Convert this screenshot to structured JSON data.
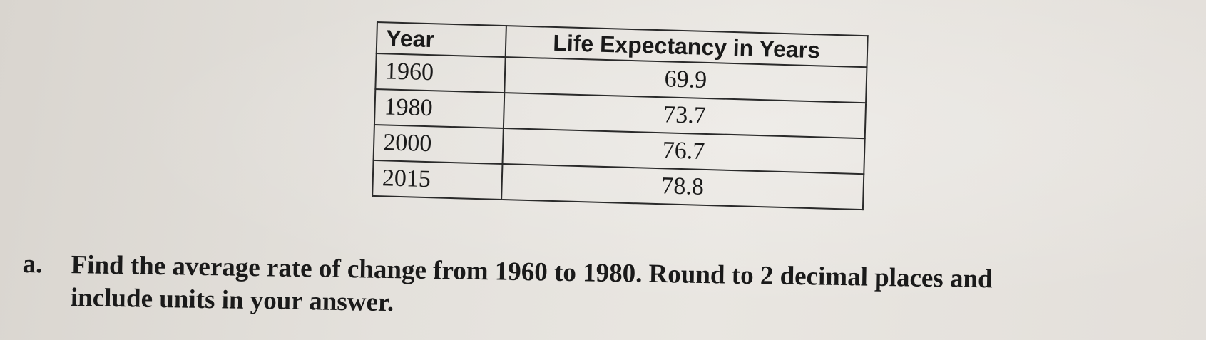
{
  "table": {
    "headers": [
      "Year",
      "Life Expectancy in Years"
    ],
    "rows": [
      {
        "year": "1960",
        "life": "69.9"
      },
      {
        "year": "1980",
        "life": "73.7"
      },
      {
        "year": "2000",
        "life": "76.7"
      },
      {
        "year": "2015",
        "life": "78.8"
      }
    ]
  },
  "question": {
    "label": "a.",
    "line1": "Find the average rate of change from 1960 to 1980. Round to 2 decimal places and",
    "line2": "include units in your answer."
  }
}
